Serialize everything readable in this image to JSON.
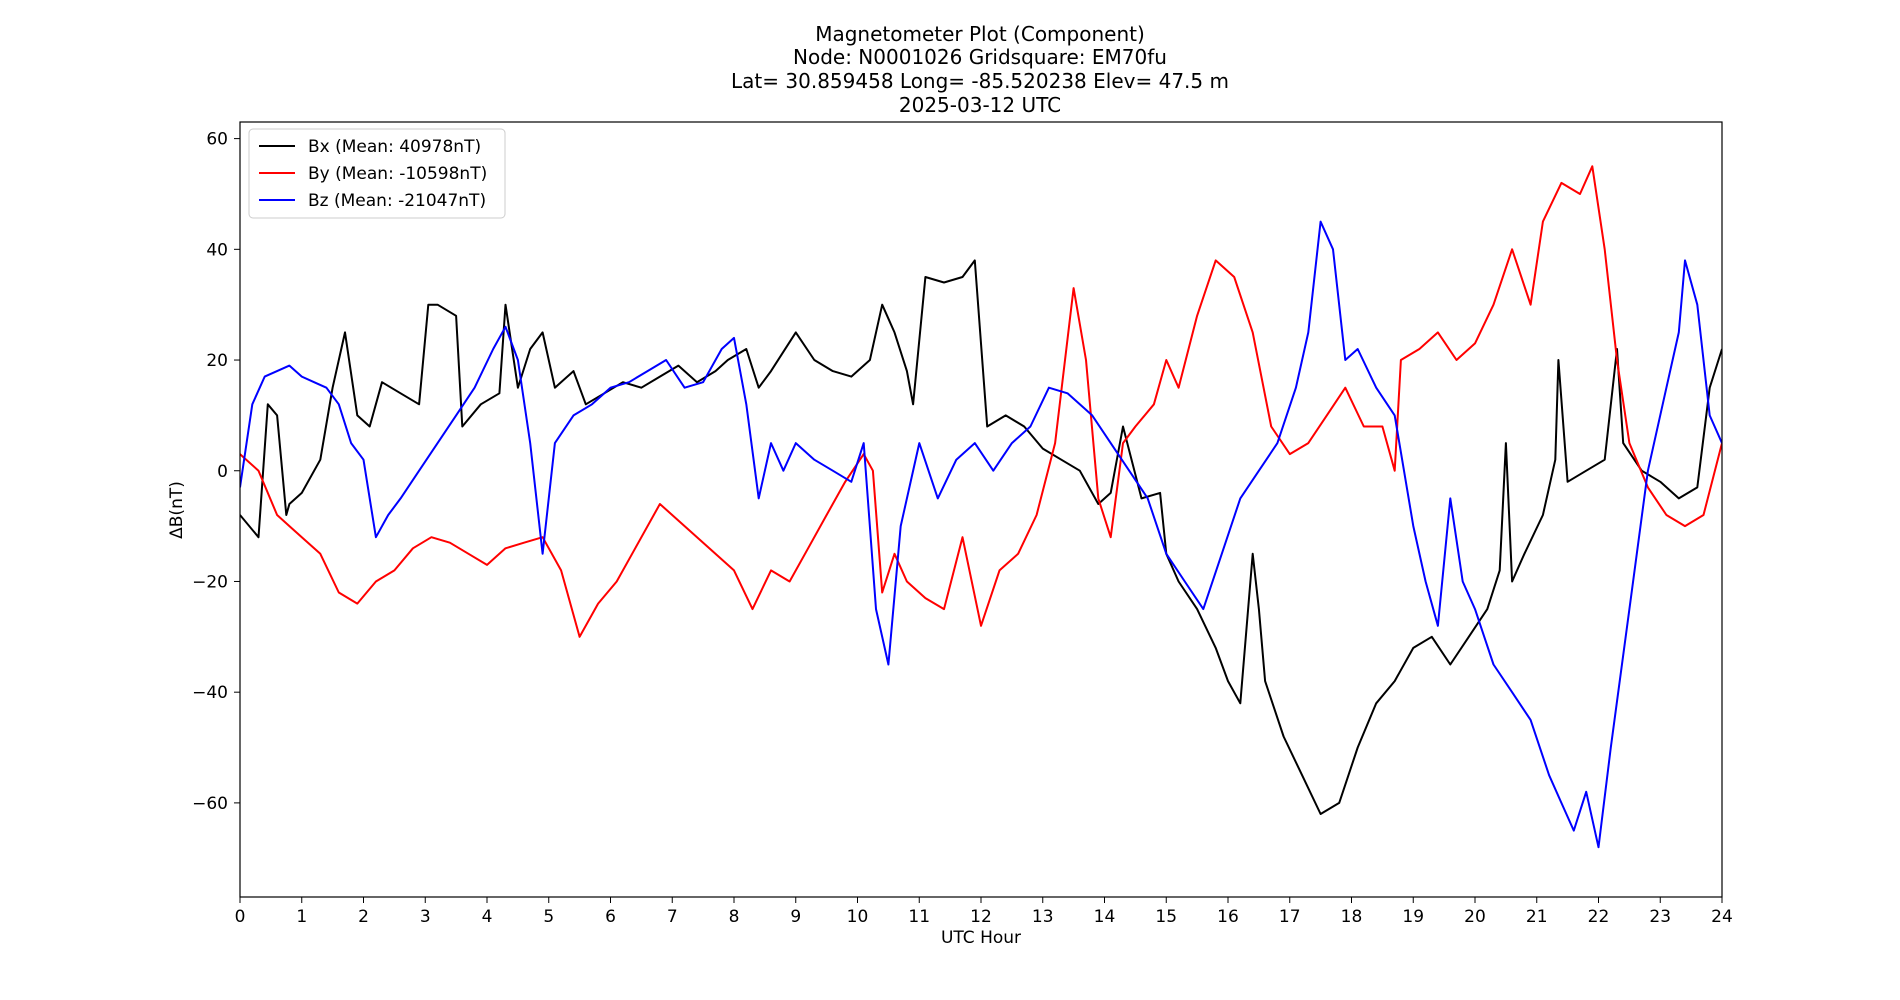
{
  "chart_data": {
    "type": "line",
    "title_lines": [
      "Magnetometer Plot (Component)",
      "Node:  N0001026     Gridsquare:  EM70fu",
      "Lat= 30.859458    Long= -85.520238    Elev= 47.5 m",
      "2025-03-12  UTC"
    ],
    "xlabel": "UTC Hour",
    "ylabel": "ΔB(nT)",
    "xlim": [
      0,
      24
    ],
    "ylim": [
      -77,
      63
    ],
    "xticks": [
      0,
      1,
      2,
      3,
      4,
      5,
      6,
      7,
      8,
      9,
      10,
      11,
      12,
      13,
      14,
      15,
      16,
      17,
      18,
      19,
      20,
      21,
      22,
      23,
      24
    ],
    "yticks": [
      60,
      40,
      20,
      0,
      -20,
      -40,
      -60
    ],
    "ytick_labels": [
      "60",
      "40",
      "20",
      "0",
      "−20",
      "−40",
      "−60"
    ],
    "grid": false,
    "legend_position": "top-left",
    "series": [
      {
        "name": "Bx (Mean: 40978nT)",
        "color": "#000000",
        "x": [
          0,
          0.3,
          0.45,
          0.6,
          0.75,
          0.8,
          1.0,
          1.3,
          1.5,
          1.7,
          1.9,
          2.1,
          2.3,
          2.6,
          2.9,
          3.05,
          3.2,
          3.5,
          3.6,
          3.9,
          4.2,
          4.3,
          4.5,
          4.7,
          4.9,
          5.1,
          5.4,
          5.6,
          5.9,
          6.2,
          6.5,
          6.8,
          7.1,
          7.4,
          7.7,
          7.9,
          8.2,
          8.4,
          8.6,
          9.0,
          9.3,
          9.6,
          9.9,
          10.2,
          10.4,
          10.6,
          10.8,
          10.9,
          11.1,
          11.4,
          11.7,
          11.9,
          12.1,
          12.4,
          12.7,
          13.0,
          13.3,
          13.6,
          13.9,
          14.1,
          14.3,
          14.6,
          14.9,
          15.0,
          15.2,
          15.5,
          15.8,
          16.0,
          16.2,
          16.4,
          16.5,
          16.6,
          16.9,
          17.2,
          17.5,
          17.8,
          18.1,
          18.4,
          18.7,
          19.0,
          19.3,
          19.6,
          19.9,
          20.2,
          20.4,
          20.5,
          20.6,
          20.8,
          21.1,
          21.3,
          21.35,
          21.5,
          21.8,
          22.1,
          22.3,
          22.4,
          22.7,
          23.0,
          23.3,
          23.6,
          23.8,
          24.0
        ],
        "y": [
          -8,
          -12,
          12,
          10,
          -8,
          -6,
          -4,
          2,
          15,
          25,
          10,
          8,
          16,
          14,
          12,
          30,
          30,
          28,
          8,
          12,
          14,
          30,
          15,
          22,
          25,
          15,
          18,
          12,
          14,
          16,
          15,
          17,
          19,
          16,
          18,
          20,
          22,
          15,
          18,
          25,
          20,
          18,
          17,
          20,
          30,
          25,
          18,
          12,
          35,
          34,
          35,
          38,
          8,
          10,
          8,
          4,
          2,
          0,
          -6,
          -4,
          8,
          -5,
          -4,
          -15,
          -20,
          -25,
          -32,
          -38,
          -42,
          -15,
          -25,
          -38,
          -48,
          -55,
          -62,
          -60,
          -50,
          -42,
          -38,
          -32,
          -30,
          -35,
          -30,
          -25,
          -18,
          5,
          -20,
          -15,
          -8,
          2,
          20,
          -2,
          0,
          2,
          22,
          5,
          0,
          -2,
          -5,
          -3,
          15,
          22
        ]
      },
      {
        "name": "By (Mean: -10598nT)",
        "color": "#ff0000",
        "x": [
          0,
          0.3,
          0.6,
          0.8,
          1.0,
          1.3,
          1.6,
          1.9,
          2.2,
          2.5,
          2.8,
          3.1,
          3.4,
          3.7,
          4.0,
          4.3,
          4.6,
          4.9,
          5.2,
          5.5,
          5.8,
          6.1,
          6.4,
          6.8,
          7.2,
          7.6,
          8.0,
          8.3,
          8.6,
          8.9,
          9.2,
          9.5,
          9.8,
          10.1,
          10.25,
          10.4,
          10.6,
          10.8,
          11.1,
          11.4,
          11.7,
          12.0,
          12.3,
          12.6,
          12.9,
          13.2,
          13.5,
          13.7,
          13.9,
          14.1,
          14.3,
          14.5,
          14.8,
          15.0,
          15.2,
          15.5,
          15.8,
          16.1,
          16.4,
          16.7,
          17.0,
          17.3,
          17.6,
          17.9,
          18.2,
          18.5,
          18.7,
          18.8,
          19.1,
          19.4,
          19.7,
          20.0,
          20.3,
          20.6,
          20.9,
          21.1,
          21.4,
          21.7,
          21.9,
          22.1,
          22.3,
          22.5,
          22.8,
          23.1,
          23.4,
          23.7,
          24.0
        ],
        "y": [
          3,
          0,
          -8,
          -10,
          -12,
          -15,
          -22,
          -24,
          -20,
          -18,
          -14,
          -12,
          -13,
          -15,
          -17,
          -14,
          -13,
          -12,
          -18,
          -30,
          -24,
          -20,
          -14,
          -6,
          -10,
          -14,
          -18,
          -25,
          -18,
          -20,
          -14,
          -8,
          -2,
          3,
          0,
          -22,
          -15,
          -20,
          -23,
          -25,
          -12,
          -28,
          -18,
          -15,
          -8,
          5,
          33,
          20,
          -5,
          -12,
          5,
          8,
          12,
          20,
          15,
          28,
          38,
          35,
          25,
          8,
          3,
          5,
          10,
          15,
          8,
          8,
          0,
          20,
          22,
          25,
          20,
          23,
          30,
          40,
          30,
          45,
          52,
          50,
          55,
          40,
          20,
          5,
          -3,
          -8,
          -10,
          -8,
          5
        ]
      },
      {
        "name": "Bz (Mean: -21047nT)",
        "color": "#0000ff",
        "x": [
          0,
          0.2,
          0.4,
          0.6,
          0.8,
          1.0,
          1.2,
          1.4,
          1.6,
          1.8,
          2.0,
          2.2,
          2.4,
          2.6,
          2.9,
          3.2,
          3.5,
          3.8,
          4.1,
          4.3,
          4.5,
          4.7,
          4.9,
          5.1,
          5.4,
          5.7,
          6.0,
          6.3,
          6.6,
          6.9,
          7.2,
          7.5,
          7.8,
          8.0,
          8.2,
          8.4,
          8.6,
          8.8,
          9.0,
          9.3,
          9.6,
          9.9,
          10.1,
          10.3,
          10.5,
          10.7,
          11.0,
          11.3,
          11.6,
          11.9,
          12.2,
          12.5,
          12.8,
          13.1,
          13.4,
          13.6,
          13.8,
          14.1,
          14.4,
          14.7,
          15.0,
          15.3,
          15.6,
          15.9,
          16.2,
          16.5,
          16.8,
          17.1,
          17.3,
          17.5,
          17.7,
          17.9,
          18.1,
          18.4,
          18.7,
          19.0,
          19.2,
          19.4,
          19.6,
          19.8,
          20.0,
          20.3,
          20.6,
          20.9,
          21.2,
          21.4,
          21.6,
          21.8,
          22.0,
          22.2,
          22.5,
          22.8,
          23.1,
          23.3,
          23.4,
          23.6,
          23.8,
          24.0
        ],
        "y": [
          -3,
          12,
          17,
          18,
          19,
          17,
          16,
          15,
          12,
          5,
          2,
          -12,
          -8,
          -5,
          0,
          5,
          10,
          15,
          22,
          26,
          20,
          5,
          -15,
          5,
          10,
          12,
          15,
          16,
          18,
          20,
          15,
          16,
          22,
          24,
          12,
          -5,
          5,
          0,
          5,
          2,
          0,
          -2,
          5,
          -25,
          -35,
          -10,
          5,
          -5,
          2,
          5,
          0,
          5,
          8,
          15,
          14,
          12,
          10,
          5,
          0,
          -5,
          -15,
          -20,
          -25,
          -15,
          -5,
          0,
          5,
          15,
          25,
          45,
          40,
          20,
          22,
          15,
          10,
          -10,
          -20,
          -28,
          -5,
          -20,
          -25,
          -35,
          -40,
          -45,
          -55,
          -60,
          -65,
          -58,
          -68,
          -50,
          -25,
          0,
          15,
          25,
          38,
          30,
          10,
          5
        ]
      }
    ]
  }
}
